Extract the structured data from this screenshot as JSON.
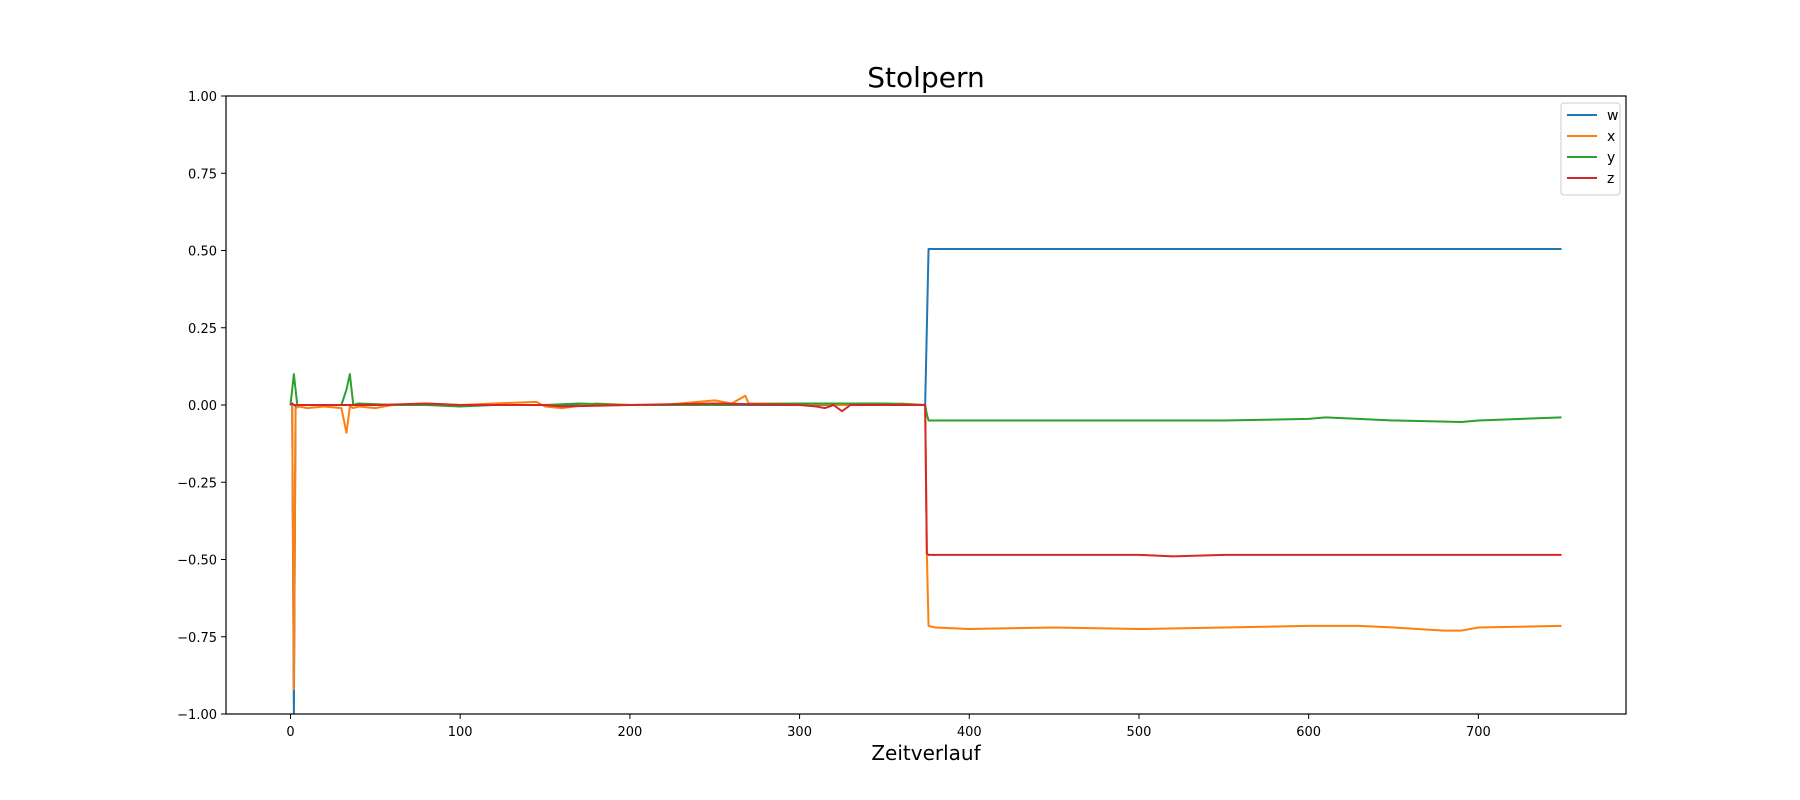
{
  "chart_data": {
    "type": "line",
    "title": "Stolpern",
    "xlabel": "Zeitverlauf",
    "ylabel": "",
    "xlim": [
      -38,
      787
    ],
    "ylim": [
      -1.0,
      1.0
    ],
    "xticks": [
      0,
      100,
      200,
      300,
      400,
      500,
      600,
      700
    ],
    "xtick_labels": [
      "0",
      "100",
      "200",
      "300",
      "400",
      "500",
      "600",
      "700"
    ],
    "yticks": [
      -1.0,
      -0.75,
      -0.5,
      -0.25,
      0.0,
      0.25,
      0.5,
      0.75,
      1.0
    ],
    "ytick_labels": [
      "−1.00",
      "−0.75",
      "−0.50",
      "−0.25",
      "0.00",
      "0.25",
      "0.50",
      "0.75",
      "1.00"
    ],
    "grid": false,
    "legend_position": "top-right",
    "series": [
      {
        "name": "w",
        "color": "#1f77b4",
        "x": [
          0,
          1,
          2,
          3,
          4,
          10,
          50,
          100,
          150,
          200,
          250,
          300,
          350,
          374,
          375,
          376,
          400,
          450,
          500,
          550,
          600,
          650,
          700,
          749
        ],
        "y": [
          0.0,
          0.0,
          -1.0,
          0.0,
          0.0,
          0.0,
          0.0,
          0.0,
          0.0,
          0.0,
          0.0,
          0.0,
          0.0,
          0.0,
          0.25,
          0.505,
          0.505,
          0.505,
          0.505,
          0.505,
          0.505,
          0.505,
          0.505,
          0.505
        ]
      },
      {
        "name": "x",
        "color": "#ff7f0e",
        "x": [
          0,
          1,
          2,
          3,
          5,
          10,
          20,
          30,
          33,
          35,
          37,
          40,
          50,
          60,
          80,
          100,
          120,
          145,
          150,
          160,
          180,
          200,
          220,
          240,
          250,
          260,
          268,
          270,
          280,
          300,
          320,
          340,
          360,
          374,
          375,
          376,
          380,
          400,
          450,
          500,
          550,
          600,
          630,
          650,
          680,
          690,
          700,
          749
        ],
        "y": [
          0.0,
          0.005,
          -0.92,
          -0.01,
          -0.005,
          -0.01,
          -0.005,
          -0.01,
          -0.09,
          -0.005,
          -0.01,
          -0.005,
          -0.01,
          0.0,
          0.005,
          0.0,
          0.005,
          0.01,
          -0.005,
          -0.01,
          0.005,
          0.0,
          0.0,
          0.01,
          0.015,
          0.005,
          0.03,
          0.005,
          0.005,
          0.005,
          0.0,
          0.0,
          0.005,
          0.0,
          -0.48,
          -0.715,
          -0.72,
          -0.725,
          -0.72,
          -0.725,
          -0.72,
          -0.715,
          -0.715,
          -0.72,
          -0.73,
          -0.73,
          -0.72,
          -0.715
        ]
      },
      {
        "name": "y",
        "color": "#2ca02c",
        "x": [
          0,
          1,
          2,
          4,
          10,
          20,
          30,
          33,
          35,
          37,
          40,
          60,
          80,
          100,
          120,
          150,
          170,
          200,
          250,
          300,
          320,
          350,
          374,
          375,
          376,
          400,
          450,
          500,
          550,
          600,
          610,
          650,
          690,
          700,
          749
        ],
        "y": [
          0.0,
          0.05,
          0.1,
          0.0,
          0.0,
          0.0,
          0.0,
          0.05,
          0.1,
          0.0,
          0.005,
          0.0,
          0.0,
          -0.005,
          0.0,
          0.0,
          0.005,
          0.0,
          0.0,
          0.005,
          0.005,
          0.005,
          0.0,
          -0.03,
          -0.05,
          -0.05,
          -0.05,
          -0.05,
          -0.05,
          -0.045,
          -0.04,
          -0.05,
          -0.055,
          -0.05,
          -0.04
        ]
      },
      {
        "name": "z",
        "color": "#d62728",
        "x": [
          0,
          1,
          2,
          3,
          10,
          20,
          50,
          80,
          100,
          150,
          160,
          200,
          250,
          300,
          310,
          315,
          320,
          325,
          330,
          350,
          374,
          375,
          376,
          400,
          450,
          500,
          520,
          550,
          600,
          650,
          700,
          749
        ],
        "y": [
          0.0,
          0.005,
          0.0,
          0.0,
          0.0,
          0.0,
          0.0,
          0.005,
          0.0,
          0.0,
          -0.005,
          0.0,
          0.005,
          0.0,
          -0.005,
          -0.01,
          0.0,
          -0.02,
          0.0,
          0.0,
          0.0,
          -0.48,
          -0.485,
          -0.485,
          -0.485,
          -0.485,
          -0.49,
          -0.485,
          -0.485,
          -0.485,
          -0.485,
          -0.485
        ]
      }
    ]
  }
}
